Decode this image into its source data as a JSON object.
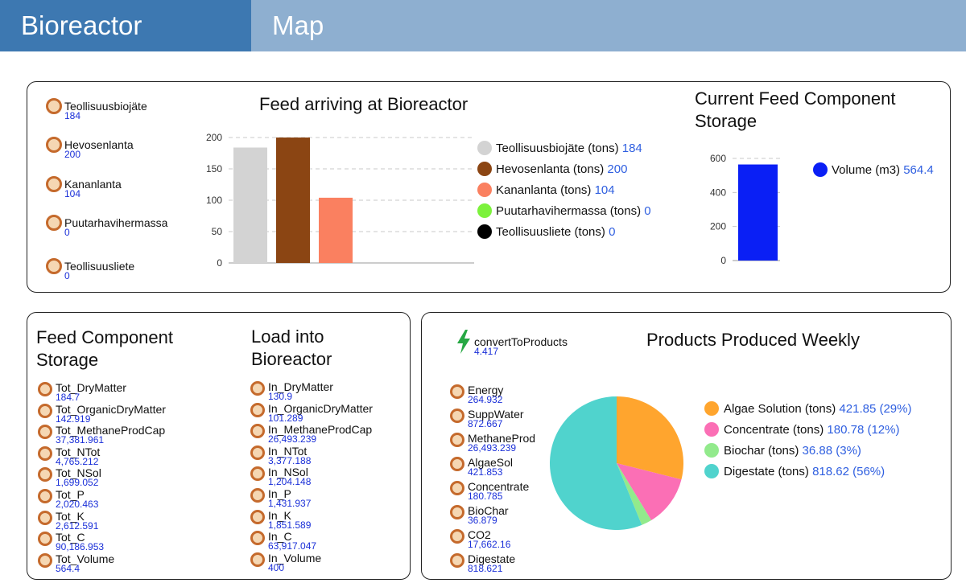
{
  "tabs": [
    {
      "label": "Bioreactor",
      "active": true
    },
    {
      "label": "Map",
      "active": false
    }
  ],
  "feed_sensors": [
    {
      "name": "Teollisuusbiojäte",
      "value": "184"
    },
    {
      "name": "Hevosenlanta",
      "value": "200"
    },
    {
      "name": "Kananlanta",
      "value": "104"
    },
    {
      "name": "Puutarhavihermassa",
      "value": "0"
    },
    {
      "name": "Teollisuusliete",
      "value": "0"
    }
  ],
  "feed_chart_title": "Feed arriving at Bioreactor",
  "feed_legend": [
    {
      "label": "Teollisuusbiojäte (tons)",
      "value": "184",
      "color": "#d3d3d3"
    },
    {
      "label": "Hevosenlanta (tons)",
      "value": "200",
      "color": "#8b4513"
    },
    {
      "label": "Kananlanta (tons)",
      "value": "104",
      "color": "#fa8060"
    },
    {
      "label": "Puutarhavihermassa (tons)",
      "value": "0",
      "color": "#7cf23c"
    },
    {
      "label": "Teollisuusliete (tons)",
      "value": "0",
      "color": "#000000"
    }
  ],
  "storage_chart_title": "Current Feed Component Storage",
  "storage_legend": {
    "label": "Volume (m3)",
    "value": "564.4",
    "color": "#0a1ff5"
  },
  "storage_panel": {
    "title_left": "Feed Component Storage",
    "title_right": "Load into Bioreactor",
    "left_items": [
      {
        "name": "Tot_DryMatter",
        "value": "184.7"
      },
      {
        "name": "Tot_OrganicDryMatter",
        "value": "142.919"
      },
      {
        "name": "Tot_MethaneProdCap",
        "value": "37,381.961"
      },
      {
        "name": "Tot_NTot",
        "value": "4,765.212"
      },
      {
        "name": "Tot_NSol",
        "value": "1,699.052"
      },
      {
        "name": "Tot_P",
        "value": "2,020.463"
      },
      {
        "name": "Tot_K",
        "value": "2,612.591"
      },
      {
        "name": "Tot_C",
        "value": "90,186.953"
      },
      {
        "name": "Tot_Volume",
        "value": "564.4"
      }
    ],
    "right_items": [
      {
        "name": "In_DryMatter",
        "value": "130.9"
      },
      {
        "name": "In_OrganicDryMatter",
        "value": "101.289"
      },
      {
        "name": "In_MethaneProdCap",
        "value": "26,493.239"
      },
      {
        "name": "In_NTot",
        "value": "3,377.188"
      },
      {
        "name": "In_NSol",
        "value": "1,204.148"
      },
      {
        "name": "In_P",
        "value": "1,431.937"
      },
      {
        "name": "In_K",
        "value": "1,851.589"
      },
      {
        "name": "In_C",
        "value": "63,917.047"
      },
      {
        "name": "In_Volume",
        "value": "400"
      }
    ]
  },
  "products_panel": {
    "convert": {
      "name": "convertToProducts",
      "value": "4.417"
    },
    "title": "Products Produced Weekly",
    "items": [
      {
        "name": "Energy",
        "value": "264.932"
      },
      {
        "name": "SuppWater",
        "value": "872.667"
      },
      {
        "name": "MethaneProd",
        "value": "26,493.239"
      },
      {
        "name": "AlgaeSol",
        "value": "421.853"
      },
      {
        "name": "Concentrate",
        "value": "180.785"
      },
      {
        "name": "BioChar",
        "value": "36.879"
      },
      {
        "name": "CO2",
        "value": "17,662.16"
      },
      {
        "name": "Digestate",
        "value": "818.621"
      }
    ],
    "legend": [
      {
        "label": "Algae Solution (tons)",
        "value": "421.85 (29%)",
        "color": "#ffa52e"
      },
      {
        "label": "Concentrate (tons)",
        "value": "180.78 (12%)",
        "color": "#fb6fb5"
      },
      {
        "label": "Biochar (tons)",
        "value": "36.88 (3%)",
        "color": "#92ea8c"
      },
      {
        "label": "Digestate (tons)",
        "value": "818.62 (56%)",
        "color": "#50d3cd"
      }
    ]
  },
  "chart_data": [
    {
      "type": "bar",
      "title": "Feed arriving at Bioreactor",
      "categories": [
        "Teollisuusbiojäte (tons)",
        "Hevosenlanta (tons)",
        "Kananlanta (tons)",
        "Puutarhavihermassa (tons)",
        "Teollisuusliete (tons)"
      ],
      "values": [
        184,
        200,
        104,
        0,
        0
      ],
      "colors": [
        "#d3d3d3",
        "#8b4513",
        "#fa8060",
        "#7cf23c",
        "#000000"
      ],
      "ylim": [
        0,
        200
      ],
      "yticks": [
        "0",
        "50",
        "100",
        "150",
        "200"
      ],
      "grid": true,
      "legend": "right"
    },
    {
      "type": "bar",
      "title": "Current Feed Component Storage",
      "categories": [
        "Volume (m3)"
      ],
      "values": [
        564.4
      ],
      "colors": [
        "#0a1ff5"
      ],
      "ylim": [
        0,
        600
      ],
      "yticks": [
        "0",
        "200",
        "400",
        "600"
      ],
      "grid": true,
      "legend": "right"
    },
    {
      "type": "pie",
      "title": "Products Produced Weekly",
      "categories": [
        "Algae Solution (tons)",
        "Concentrate (tons)",
        "Biochar (tons)",
        "Digestate (tons)"
      ],
      "values": [
        421.85,
        180.78,
        36.88,
        818.62
      ],
      "colors": [
        "#ffa52e",
        "#fb6fb5",
        "#92ea8c",
        "#50d3cd"
      ],
      "legend": "right"
    }
  ]
}
